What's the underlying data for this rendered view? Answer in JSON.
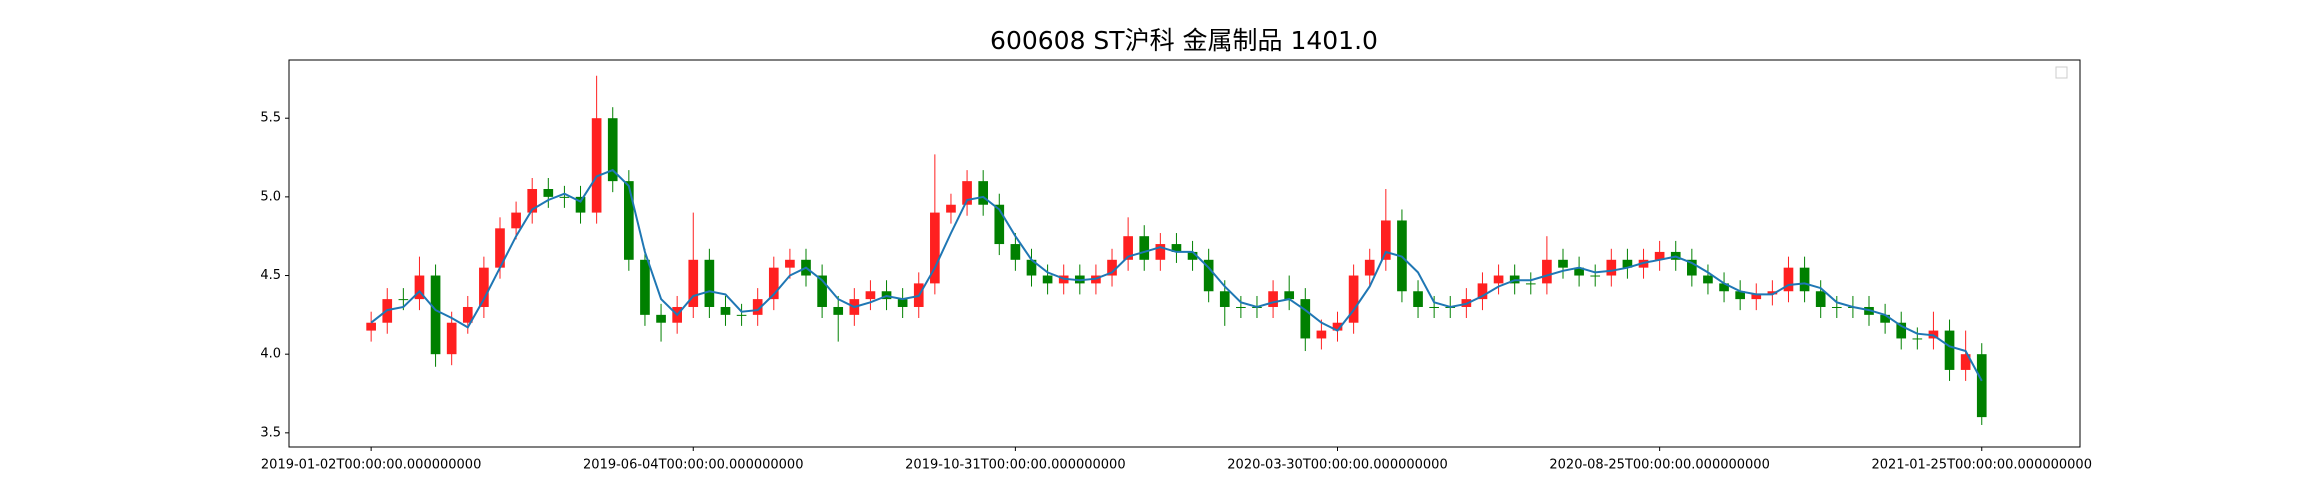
{
  "chart_data": {
    "type": "candlestick",
    "title": "600608 ST沪科 金属制品 1401.0",
    "categories": [
      "2019-01-02T00:00:00.000000000",
      null,
      null,
      null,
      null,
      null,
      null,
      null,
      null,
      null,
      null,
      null,
      null,
      null,
      null,
      null,
      null,
      null,
      null,
      null,
      "2019-06-04T00:00:00.000000000",
      null,
      null,
      null,
      null,
      null,
      null,
      null,
      null,
      null,
      null,
      null,
      null,
      null,
      null,
      null,
      null,
      null,
      null,
      null,
      "2019-10-31T00:00:00.000000000",
      null,
      null,
      null,
      null,
      null,
      null,
      null,
      null,
      null,
      null,
      null,
      null,
      null,
      null,
      null,
      null,
      null,
      null,
      null,
      "2020-03-30T00:00:00.000000000",
      null,
      null,
      null,
      null,
      null,
      null,
      null,
      null,
      null,
      null,
      null,
      null,
      null,
      null,
      null,
      null,
      null,
      null,
      null,
      "2020-08-25T00:00:00.000000000",
      null,
      null,
      null,
      null,
      null,
      null,
      null,
      null,
      null,
      null,
      null,
      null,
      null,
      null,
      null,
      null,
      null,
      null,
      null,
      "2021-01-25T00:00:00.000000000"
    ],
    "open": [
      4.15,
      4.2,
      4.35,
      4.35,
      4.5,
      4.0,
      4.2,
      4.3,
      4.55,
      4.8,
      4.9,
      5.05,
      5.0,
      5.0,
      4.9,
      5.5,
      5.1,
      4.6,
      4.25,
      4.2,
      4.3,
      4.6,
      4.3,
      4.25,
      4.25,
      4.35,
      4.55,
      4.6,
      4.5,
      4.3,
      4.25,
      4.35,
      4.4,
      4.35,
      4.3,
      4.45,
      4.9,
      4.95,
      5.1,
      4.95,
      4.7,
      4.6,
      4.5,
      4.45,
      4.5,
      4.45,
      4.5,
      4.6,
      4.75,
      4.6,
      4.7,
      4.65,
      4.6,
      4.4,
      4.3,
      4.3,
      4.3,
      4.4,
      4.35,
      4.1,
      4.15,
      4.2,
      4.5,
      4.6,
      4.85,
      4.4,
      4.3,
      4.3,
      4.3,
      4.35,
      4.45,
      4.5,
      4.45,
      4.45,
      4.6,
      4.55,
      4.5,
      4.5,
      4.6,
      4.55,
      4.6,
      4.65,
      4.6,
      4.5,
      4.45,
      4.4,
      4.35,
      4.38,
      4.4,
      4.55,
      4.4,
      4.3,
      4.3,
      4.3,
      4.25,
      4.2,
      4.1,
      4.1,
      4.15,
      3.9,
      4.0
    ],
    "high": [
      4.27,
      4.42,
      4.42,
      4.62,
      4.57,
      4.27,
      4.37,
      4.62,
      4.87,
      4.97,
      5.12,
      5.12,
      5.07,
      5.07,
      5.77,
      5.57,
      5.17,
      4.67,
      4.32,
      4.37,
      4.9,
      4.67,
      4.37,
      4.32,
      4.42,
      4.62,
      4.67,
      4.67,
      4.57,
      4.37,
      4.42,
      4.47,
      4.47,
      4.42,
      4.52,
      5.27,
      5.02,
      5.17,
      5.17,
      5.02,
      4.77,
      4.67,
      4.57,
      4.57,
      4.57,
      4.57,
      4.67,
      4.87,
      4.82,
      4.77,
      4.77,
      4.72,
      4.67,
      4.47,
      4.37,
      4.37,
      4.47,
      4.5,
      4.42,
      4.22,
      4.27,
      4.57,
      4.67,
      5.05,
      4.92,
      4.47,
      4.37,
      4.37,
      4.42,
      4.52,
      4.57,
      4.57,
      4.52,
      4.75,
      4.67,
      4.62,
      4.57,
      4.67,
      4.67,
      4.67,
      4.72,
      4.72,
      4.67,
      4.57,
      4.52,
      4.47,
      4.45,
      4.47,
      4.62,
      4.62,
      4.47,
      4.37,
      4.37,
      4.37,
      4.32,
      4.27,
      4.17,
      4.27,
      4.22,
      4.15,
      4.07
    ],
    "low": [
      4.08,
      4.13,
      4.28,
      4.28,
      3.92,
      3.93,
      4.13,
      4.23,
      4.48,
      4.73,
      4.83,
      4.93,
      4.93,
      4.83,
      4.83,
      5.03,
      4.53,
      4.18,
      4.08,
      4.13,
      4.23,
      4.23,
      4.18,
      4.18,
      4.18,
      4.28,
      4.48,
      4.43,
      4.23,
      4.08,
      4.18,
      4.28,
      4.28,
      4.23,
      4.23,
      4.38,
      4.83,
      4.88,
      4.88,
      4.63,
      4.53,
      4.43,
      4.38,
      4.38,
      4.38,
      4.38,
      4.43,
      4.53,
      4.53,
      4.53,
      4.58,
      4.53,
      4.33,
      4.18,
      4.23,
      4.23,
      4.23,
      4.28,
      4.02,
      4.03,
      4.08,
      4.13,
      4.43,
      4.53,
      4.33,
      4.23,
      4.23,
      4.23,
      4.23,
      4.28,
      4.38,
      4.38,
      4.38,
      4.38,
      4.48,
      4.43,
      4.43,
      4.43,
      4.48,
      4.48,
      4.53,
      4.53,
      4.43,
      4.38,
      4.33,
      4.28,
      4.28,
      4.31,
      4.33,
      4.33,
      4.23,
      4.23,
      4.23,
      4.18,
      4.13,
      4.03,
      4.03,
      4.03,
      3.83,
      3.83,
      3.55
    ],
    "close": [
      4.2,
      4.35,
      4.35,
      4.5,
      4.0,
      4.2,
      4.3,
      4.55,
      4.8,
      4.9,
      5.05,
      5.0,
      5.0,
      4.9,
      5.5,
      5.1,
      4.6,
      4.25,
      4.2,
      4.3,
      4.6,
      4.3,
      4.25,
      4.25,
      4.35,
      4.55,
      4.6,
      4.5,
      4.3,
      4.25,
      4.35,
      4.4,
      4.35,
      4.3,
      4.45,
      4.9,
      4.95,
      5.1,
      4.95,
      4.7,
      4.6,
      4.5,
      4.45,
      4.5,
      4.45,
      4.5,
      4.6,
      4.75,
      4.6,
      4.7,
      4.65,
      4.6,
      4.4,
      4.3,
      4.3,
      4.3,
      4.4,
      4.35,
      4.1,
      4.15,
      4.2,
      4.5,
      4.6,
      4.85,
      4.4,
      4.3,
      4.3,
      4.3,
      4.35,
      4.45,
      4.5,
      4.45,
      4.45,
      4.6,
      4.55,
      4.5,
      4.5,
      4.6,
      4.55,
      4.6,
      4.65,
      4.6,
      4.5,
      4.45,
      4.4,
      4.35,
      4.38,
      4.4,
      4.55,
      4.4,
      4.3,
      4.3,
      4.3,
      4.25,
      4.2,
      4.1,
      4.1,
      4.15,
      3.9,
      4.0,
      3.6
    ],
    "line": {
      "color": "#1f77b4",
      "values": [
        4.2,
        4.28,
        4.3,
        4.4,
        4.28,
        4.23,
        4.17,
        4.35,
        4.55,
        4.75,
        4.92,
        4.98,
        5.02,
        4.97,
        5.13,
        5.17,
        5.07,
        4.65,
        4.35,
        4.25,
        4.37,
        4.4,
        4.38,
        4.27,
        4.28,
        4.38,
        4.5,
        4.55,
        4.47,
        4.35,
        4.3,
        4.33,
        4.37,
        4.35,
        4.37,
        4.55,
        4.77,
        4.98,
        5.0,
        4.92,
        4.75,
        4.6,
        4.52,
        4.48,
        4.47,
        4.48,
        4.52,
        4.62,
        4.65,
        4.68,
        4.65,
        4.65,
        4.55,
        4.43,
        4.33,
        4.3,
        4.33,
        4.35,
        4.28,
        4.2,
        4.15,
        4.28,
        4.43,
        4.65,
        4.62,
        4.52,
        4.33,
        4.3,
        4.32,
        4.37,
        4.43,
        4.47,
        4.47,
        4.5,
        4.53,
        4.55,
        4.52,
        4.53,
        4.55,
        4.58,
        4.6,
        4.62,
        4.58,
        4.52,
        4.45,
        4.4,
        4.38,
        4.38,
        4.44,
        4.45,
        4.42,
        4.33,
        4.3,
        4.28,
        4.25,
        4.18,
        4.13,
        4.12,
        4.05,
        4.02,
        3.83
      ]
    },
    "up_color": "#ff2020",
    "down_color": "#008000",
    "xlim": [
      -5.1,
      106.1
    ],
    "ylim": [
      3.41,
      5.87
    ],
    "yticks": [
      {
        "value": 3.5,
        "label": "3.5"
      },
      {
        "value": 4,
        "label": "4.0"
      },
      {
        "value": 4.5,
        "label": "4.5"
      },
      {
        "value": 5,
        "label": "5.0"
      },
      {
        "value": 5.5,
        "label": "5.5"
      }
    ]
  }
}
